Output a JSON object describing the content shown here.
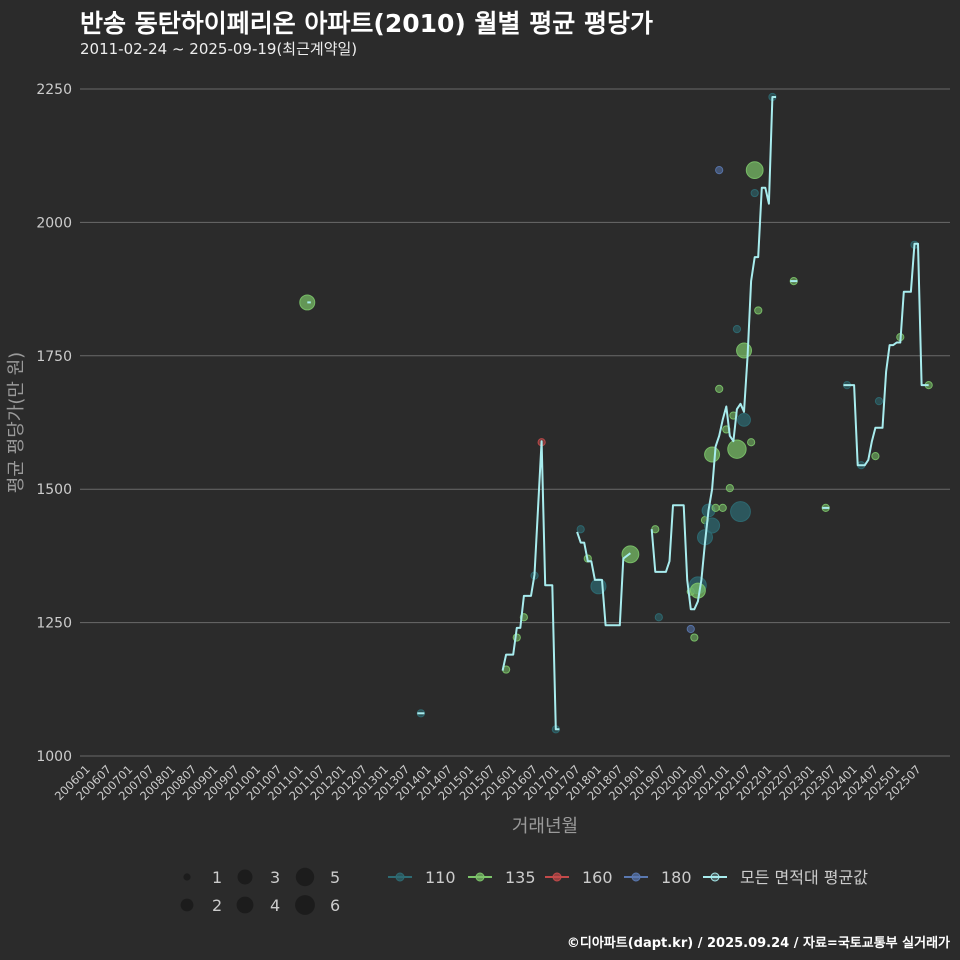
{
  "title": "반송 동탄하이페리온 아파트(2010) 월별 평균 평당가",
  "subtitle": "2011-02-24 ~ 2025-09-19(최근계약일)",
  "caption": "©디아파트(dapt.kr) / 2025.09.24 / 자료=국토교통부 실거래가",
  "colors": {
    "background": "#2b2b2b",
    "grid": "#6a6a6a",
    "text": "#cccccc",
    "axis_title": "#9a9a9a",
    "mean_line": "#a8ecee"
  },
  "chart_data": {
    "type": "line",
    "xlabel": "거래년월",
    "ylabel": "평균 평당가(만 원)",
    "ylim": [
      1000,
      2250
    ],
    "yticks": [
      1000,
      1250,
      1500,
      1750,
      2000,
      2250
    ],
    "grid": true,
    "x_tick_labels": [
      "200601",
      "200607",
      "200701",
      "200707",
      "200801",
      "200807",
      "200901",
      "200907",
      "201001",
      "201007",
      "201101",
      "201107",
      "201201",
      "201207",
      "201301",
      "201307",
      "201401",
      "201407",
      "201501",
      "201507",
      "201601",
      "201607",
      "201701",
      "201707",
      "201801",
      "201807",
      "201901",
      "201907",
      "202001",
      "202007",
      "202101",
      "202107",
      "202201",
      "202207",
      "202301",
      "202307",
      "202401",
      "202407",
      "202501",
      "202507"
    ],
    "size_legend": {
      "values": [
        1,
        2,
        3,
        4,
        5,
        6
      ]
    },
    "series": [
      {
        "name": "110",
        "color": "#2e6b73"
      },
      {
        "name": "135",
        "color": "#7cc46a"
      },
      {
        "name": "160",
        "color": "#c34a4a"
      },
      {
        "name": "180",
        "color": "#5a78b0"
      }
    ],
    "mean_series": {
      "name": "모든 면적대 평균값",
      "color": "#a8ecee",
      "segments": [
        [
          [
            "2011-02",
            1850
          ],
          [
            "2011-03",
            1850
          ]
        ],
        [
          [
            "2013-09",
            1080
          ],
          [
            "2013-11",
            1080
          ]
        ],
        [
          [
            "2015-09",
            1160
          ],
          [
            "2015-10",
            1190
          ],
          [
            "2015-12",
            1190
          ],
          [
            "2016-01",
            1240
          ],
          [
            "2016-02",
            1240
          ],
          [
            "2016-03",
            1300
          ],
          [
            "2016-05",
            1300
          ],
          [
            "2016-06",
            1340
          ],
          [
            "2016-08",
            1590
          ],
          [
            "2016-09",
            1320
          ],
          [
            "2016-11",
            1320
          ],
          [
            "2016-12",
            1050
          ],
          [
            "2017-01",
            1050
          ]
        ],
        [
          [
            "2017-06",
            1420
          ],
          [
            "2017-07",
            1400
          ],
          [
            "2017-08",
            1400
          ],
          [
            "2017-09",
            1365
          ],
          [
            "2017-10",
            1365
          ],
          [
            "2017-11",
            1330
          ],
          [
            "2018-01",
            1330
          ],
          [
            "2018-02",
            1245
          ],
          [
            "2018-06",
            1245
          ],
          [
            "2018-07",
            1370
          ],
          [
            "2018-09",
            1380
          ]
        ],
        [
          [
            "2019-03",
            1425
          ],
          [
            "2019-04",
            1345
          ],
          [
            "2019-07",
            1345
          ],
          [
            "2019-08",
            1365
          ],
          [
            "2019-09",
            1470
          ],
          [
            "2019-12",
            1470
          ],
          [
            "2020-01",
            1330
          ],
          [
            "2020-02",
            1275
          ],
          [
            "2020-03",
            1275
          ],
          [
            "2020-04",
            1290
          ],
          [
            "2020-05",
            1330
          ],
          [
            "2020-06",
            1400
          ],
          [
            "2020-07",
            1460
          ],
          [
            "2020-08",
            1500
          ],
          [
            "2020-09",
            1580
          ],
          [
            "2020-10",
            1600
          ],
          [
            "2020-11",
            1630
          ],
          [
            "2020-12",
            1655
          ],
          [
            "2021-01",
            1600
          ],
          [
            "2021-02",
            1590
          ],
          [
            "2021-03",
            1650
          ],
          [
            "2021-04",
            1660
          ],
          [
            "2021-05",
            1645
          ],
          [
            "2021-06",
            1750
          ],
          [
            "2021-07",
            1890
          ],
          [
            "2021-08",
            1935
          ],
          [
            "2021-09",
            1935
          ],
          [
            "2021-10",
            2065
          ],
          [
            "2021-11",
            2065
          ],
          [
            "2021-12",
            2035
          ],
          [
            "2022-01",
            2235
          ],
          [
            "2022-02",
            2235
          ]
        ],
        [
          [
            "2022-06",
            1890
          ],
          [
            "2022-08",
            1890
          ]
        ],
        [
          [
            "2023-03",
            1465
          ],
          [
            "2023-05",
            1465
          ]
        ],
        [
          [
            "2023-09",
            1695
          ],
          [
            "2023-12",
            1695
          ],
          [
            "2024-01",
            1545
          ],
          [
            "2024-03",
            1545
          ],
          [
            "2024-04",
            1555
          ],
          [
            "2024-05",
            1590
          ],
          [
            "2024-06",
            1615
          ],
          [
            "2024-08",
            1615
          ],
          [
            "2024-09",
            1720
          ],
          [
            "2024-10",
            1770
          ],
          [
            "2024-11",
            1770
          ],
          [
            "2024-12",
            1775
          ],
          [
            "2025-01",
            1775
          ],
          [
            "2025-02",
            1870
          ],
          [
            "2025-04",
            1870
          ],
          [
            "2025-05",
            1960
          ],
          [
            "2025-06",
            1960
          ],
          [
            "2025-07",
            1695
          ],
          [
            "2025-09",
            1695
          ]
        ]
      ]
    },
    "points": [
      {
        "series": "135",
        "x": "2011-02",
        "y": 1850,
        "size": 3
      },
      {
        "series": "110",
        "x": "2013-10",
        "y": 1080,
        "size": 1
      },
      {
        "series": "135",
        "x": "2015-10",
        "y": 1162,
        "size": 1
      },
      {
        "series": "135",
        "x": "2016-01",
        "y": 1222,
        "size": 1
      },
      {
        "series": "135",
        "x": "2016-03",
        "y": 1260,
        "size": 1
      },
      {
        "series": "110",
        "x": "2016-06",
        "y": 1338,
        "size": 1
      },
      {
        "series": "160",
        "x": "2016-08",
        "y": 1588,
        "size": 1
      },
      {
        "series": "110",
        "x": "2016-12",
        "y": 1050,
        "size": 1
      },
      {
        "series": "110",
        "x": "2017-07",
        "y": 1425,
        "size": 1
      },
      {
        "series": "135",
        "x": "2017-09",
        "y": 1370,
        "size": 1
      },
      {
        "series": "110",
        "x": "2017-12",
        "y": 1318,
        "size": 3
      },
      {
        "series": "135",
        "x": "2018-09",
        "y": 1378,
        "size": 4
      },
      {
        "series": "135",
        "x": "2019-04",
        "y": 1425,
        "size": 1
      },
      {
        "series": "110",
        "x": "2019-05",
        "y": 1260,
        "size": 1
      },
      {
        "series": "180",
        "x": "2020-02",
        "y": 1238,
        "size": 1
      },
      {
        "series": "135",
        "x": "2020-02",
        "y": 1308,
        "size": 1
      },
      {
        "series": "135",
        "x": "2020-03",
        "y": 1222,
        "size": 1
      },
      {
        "series": "110",
        "x": "2020-04",
        "y": 1320,
        "size": 4
      },
      {
        "series": "135",
        "x": "2020-04",
        "y": 1310,
        "size": 3
      },
      {
        "series": "135",
        "x": "2020-06",
        "y": 1442,
        "size": 1
      },
      {
        "series": "110",
        "x": "2020-06",
        "y": 1410,
        "size": 3
      },
      {
        "series": "110",
        "x": "2020-07",
        "y": 1460,
        "size": 2
      },
      {
        "series": "110",
        "x": "2020-08",
        "y": 1432,
        "size": 3
      },
      {
        "series": "135",
        "x": "2020-08",
        "y": 1565,
        "size": 3
      },
      {
        "series": "135",
        "x": "2020-09",
        "y": 1465,
        "size": 1
      },
      {
        "series": "180",
        "x": "2020-10",
        "y": 2098,
        "size": 1
      },
      {
        "series": "135",
        "x": "2020-10",
        "y": 1688,
        "size": 1
      },
      {
        "series": "135",
        "x": "2020-11",
        "y": 1465,
        "size": 1
      },
      {
        "series": "135",
        "x": "2020-12",
        "y": 1612,
        "size": 1
      },
      {
        "series": "135",
        "x": "2021-01",
        "y": 1502,
        "size": 1
      },
      {
        "series": "135",
        "x": "2021-02",
        "y": 1638,
        "size": 1
      },
      {
        "series": "135",
        "x": "2021-03",
        "y": 1575,
        "size": 5
      },
      {
        "series": "110",
        "x": "2021-04",
        "y": 1458,
        "size": 6
      },
      {
        "series": "110",
        "x": "2021-03",
        "y": 1800,
        "size": 1
      },
      {
        "series": "135",
        "x": "2021-05",
        "y": 1760,
        "size": 3
      },
      {
        "series": "110",
        "x": "2021-05",
        "y": 1630,
        "size": 2
      },
      {
        "series": "135",
        "x": "2021-07",
        "y": 1588,
        "size": 1
      },
      {
        "series": "135",
        "x": "2021-08",
        "y": 2098,
        "size": 4
      },
      {
        "series": "110",
        "x": "2021-08",
        "y": 2055,
        "size": 1
      },
      {
        "series": "135",
        "x": "2021-09",
        "y": 1835,
        "size": 1
      },
      {
        "series": "110",
        "x": "2022-01",
        "y": 2235,
        "size": 1
      },
      {
        "series": "135",
        "x": "2022-07",
        "y": 1890,
        "size": 1
      },
      {
        "series": "135",
        "x": "2023-04",
        "y": 1465,
        "size": 1
      },
      {
        "series": "110",
        "x": "2023-10",
        "y": 1695,
        "size": 1
      },
      {
        "series": "110",
        "x": "2024-02",
        "y": 1545,
        "size": 1
      },
      {
        "series": "135",
        "x": "2024-06",
        "y": 1562,
        "size": 1
      },
      {
        "series": "110",
        "x": "2024-07",
        "y": 1665,
        "size": 1
      },
      {
        "series": "135",
        "x": "2025-01",
        "y": 1785,
        "size": 1
      },
      {
        "series": "110",
        "x": "2025-05",
        "y": 1958,
        "size": 1
      },
      {
        "series": "135",
        "x": "2025-09",
        "y": 1695,
        "size": 1
      }
    ]
  }
}
